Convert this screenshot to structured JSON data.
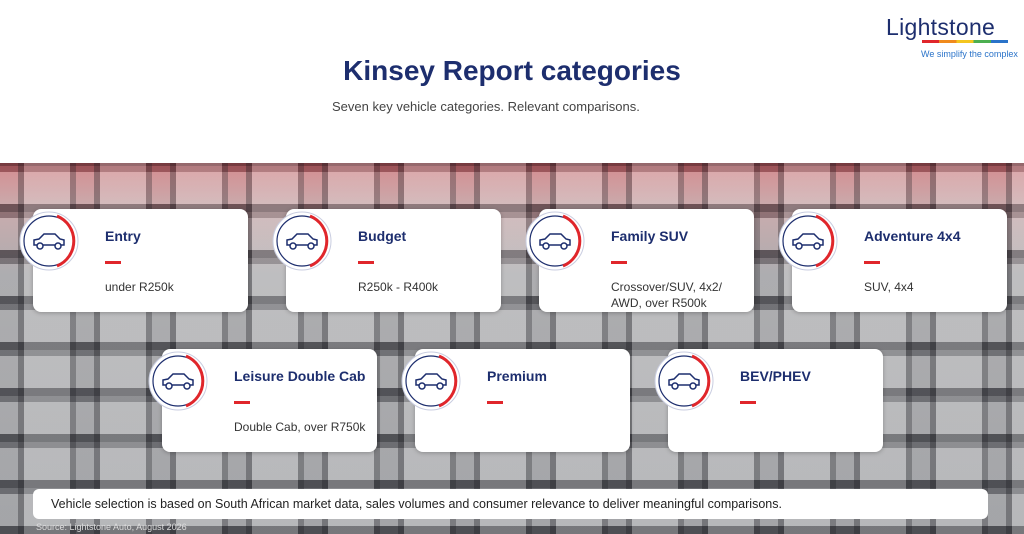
{
  "header": {
    "logo": "Lightstone",
    "tagline": "We simplify the complex",
    "title": "Kinsey Report categories",
    "subtitle": "Seven key vehicle categories. Relevant comparisons."
  },
  "categories": [
    {
      "title": "Entry",
      "description": [
        "under R250k"
      ]
    },
    {
      "title": "Budget",
      "description": [
        "R250k - R400k"
      ]
    },
    {
      "title": "Family SUV",
      "description": [
        "Crossover/SUV, 4x2/",
        "AWD, over R500k"
      ]
    },
    {
      "title": "Adventure 4x4",
      "description": [
        "SUV, 4x4"
      ]
    },
    {
      "title": "Leisure Double Cab",
      "description": [
        "Double Cab, over R750k"
      ]
    },
    {
      "title": "Premium",
      "description": []
    },
    {
      "title": "BEV/PHEV",
      "description": []
    }
  ],
  "footer": {
    "note": "Vehicle selection is based on South African market data, sales volumes and consumer relevance to deliver meaningful comparisons.",
    "source": "Source: Lightstone Auto, August 2026"
  }
}
